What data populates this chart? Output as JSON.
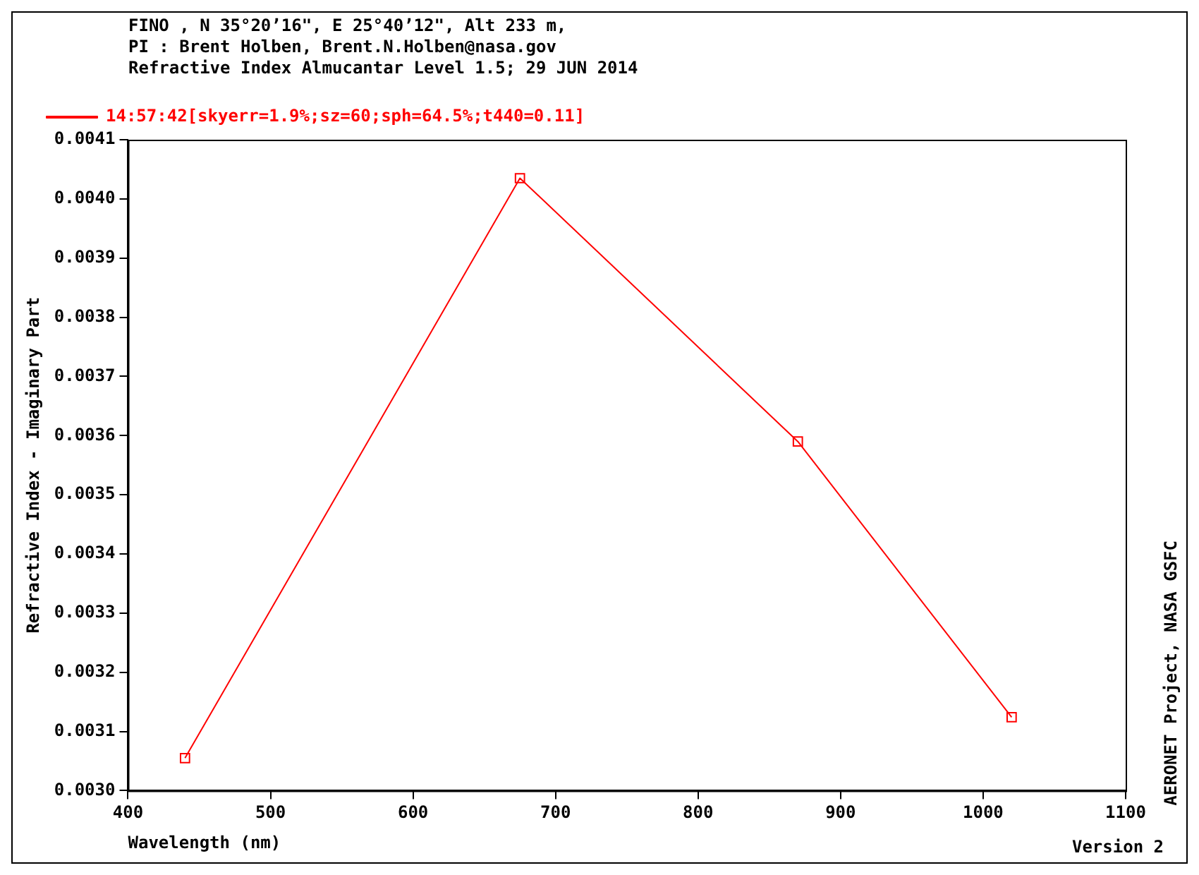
{
  "chart_data": {
    "type": "line",
    "title": "FINO , N 35°20’16\", E 25°40’12\", Alt 233 m,",
    "subtitle": "PI : Brent Holben, Brent.N.Holben@nasa.gov\nRefractive Index Almucantar Level 1.5; 29 JUN 2014",
    "xlabel": "Wavelength (nm)",
    "ylabel": "Refractive Index - Imaginary Part",
    "annotations": [
      "Version 2",
      "AERONET Project, NASA GSFC"
    ],
    "x": [
      440,
      675,
      870,
      1020
    ],
    "series": [
      {
        "name": "14:57:42[skyerr=1.9%;sz=60;sph=64.5%;t440=0.11]",
        "color": "#ff0000",
        "values": [
          0.003055,
          0.004035,
          0.00359,
          0.003124
        ]
      }
    ],
    "xlim": [
      400,
      1100
    ],
    "xticks": [
      400,
      500,
      600,
      700,
      800,
      900,
      1000,
      1100
    ],
    "ylim": [
      0.003,
      0.0041
    ],
    "yticks": [
      {
        "value": 0.003,
        "label": "0.0030"
      },
      {
        "value": 0.0031,
        "label": "0.0031"
      },
      {
        "value": 0.0032,
        "label": "0.0032"
      },
      {
        "value": 0.0033,
        "label": "0.0033"
      },
      {
        "value": 0.0034,
        "label": "0.0034"
      },
      {
        "value": 0.0035,
        "label": "0.0035"
      },
      {
        "value": 0.0036,
        "label": "0.0036"
      },
      {
        "value": 0.0037,
        "label": "0.0037"
      },
      {
        "value": 0.0038,
        "label": "0.0038"
      },
      {
        "value": 0.0039,
        "label": "0.0039"
      },
      {
        "value": 0.004,
        "label": "0.0040"
      },
      {
        "value": 0.0041,
        "label": "0.0041"
      }
    ],
    "grid": false,
    "legend": "top left",
    "marker": "square",
    "line_style": "solid"
  }
}
